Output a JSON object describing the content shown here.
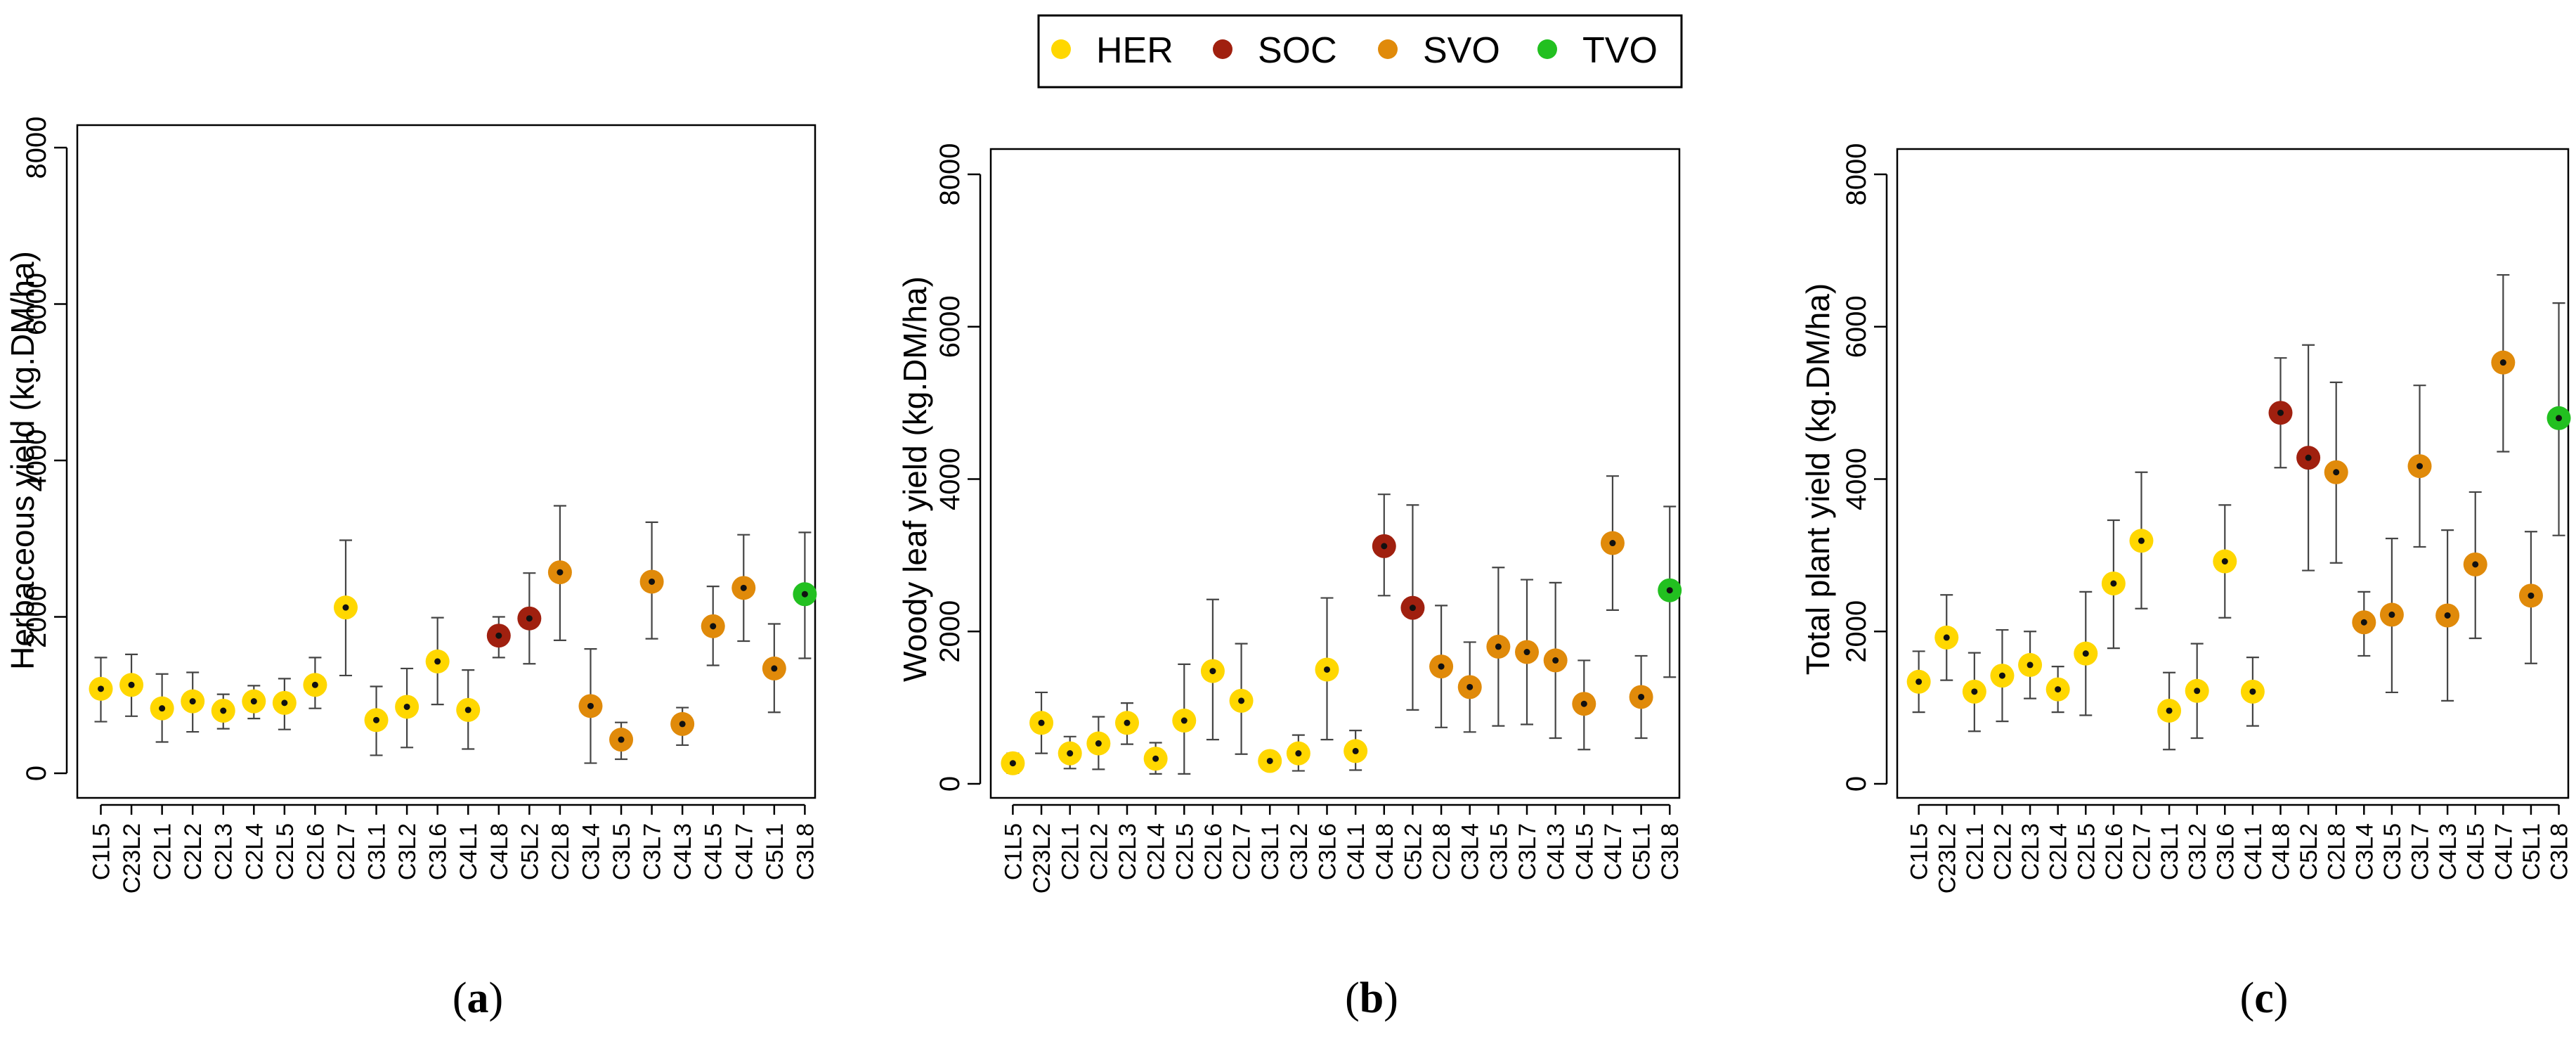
{
  "legend": {
    "entries": [
      {
        "name": "HER",
        "color": "#FFD700"
      },
      {
        "name": "SOC",
        "color": "#A0200F"
      },
      {
        "name": "SVO",
        "color": "#E08A0A"
      },
      {
        "name": "TVO",
        "color": "#22C020"
      }
    ]
  },
  "chart_data": [
    {
      "type": "scatter",
      "panel": "(a)",
      "ylabel": "Herbaceous yield (kg.DM/ha)",
      "ylim": [
        0,
        8000
      ],
      "yticks": [
        "0",
        "2000",
        "4000",
        "6000",
        "8000"
      ],
      "categories": [
        "C1L5",
        "C23L2",
        "C2L1",
        "C2L2",
        "C2L3",
        "C2L4",
        "C2L5",
        "C2L6",
        "C2L7",
        "C3L1",
        "C3L2",
        "C3L6",
        "C4L1",
        "C4L8",
        "C5L2",
        "C2L8",
        "C3L4",
        "C3L5",
        "C3L7",
        "C4L3",
        "C4L5",
        "C4L7",
        "C5L1",
        "C3L8"
      ],
      "groups": [
        "HER",
        "HER",
        "HER",
        "HER",
        "HER",
        "HER",
        "HER",
        "HER",
        "HER",
        "HER",
        "HER",
        "HER",
        "HER",
        "SOC",
        "SOC",
        "SVO",
        "SVO",
        "SVO",
        "SVO",
        "SVO",
        "SVO",
        "SVO",
        "SVO",
        "TVO"
      ],
      "values": [
        1080,
        1130,
        830,
        920,
        800,
        920,
        900,
        1130,
        2120,
        680,
        850,
        1430,
        810,
        1760,
        1980,
        2570,
        860,
        430,
        2450,
        630,
        1880,
        2370,
        1340,
        2290
      ],
      "err_low": [
        660,
        730,
        400,
        530,
        570,
        700,
        560,
        830,
        1250,
        230,
        330,
        880,
        310,
        1480,
        1400,
        1700,
        130,
        180,
        1720,
        360,
        1380,
        1690,
        780,
        1470
      ],
      "err_high": [
        1480,
        1520,
        1270,
        1290,
        1010,
        1120,
        1210,
        1480,
        2980,
        1110,
        1340,
        1990,
        1320,
        2000,
        2560,
        3420,
        1590,
        650,
        3210,
        840,
        2390,
        3050,
        1910,
        3080
      ]
    },
    {
      "type": "scatter",
      "panel": "(b)",
      "ylabel": "Woody leaf yield (kg.DM/ha)",
      "ylim": [
        0,
        8000
      ],
      "yticks": [
        "0",
        "2000",
        "4000",
        "6000",
        "8000"
      ],
      "categories": [
        "C1L5",
        "C23L2",
        "C2L1",
        "C2L2",
        "C2L3",
        "C2L4",
        "C2L5",
        "C2L6",
        "C2L7",
        "C3L1",
        "C3L2",
        "C3L6",
        "C4L1",
        "C4L8",
        "C5L2",
        "C2L8",
        "C3L4",
        "C3L5",
        "C3L7",
        "C4L3",
        "C4L5",
        "C4L7",
        "C5L1",
        "C3L8"
      ],
      "groups": [
        "HER",
        "HER",
        "HER",
        "HER",
        "HER",
        "HER",
        "HER",
        "HER",
        "HER",
        "HER",
        "HER",
        "HER",
        "HER",
        "SOC",
        "SOC",
        "SVO",
        "SVO",
        "SVO",
        "SVO",
        "SVO",
        "SVO",
        "SVO",
        "SVO",
        "TVO"
      ],
      "values": [
        270,
        800,
        400,
        530,
        800,
        330,
        830,
        1480,
        1090,
        300,
        400,
        1500,
        430,
        3120,
        2310,
        1540,
        1270,
        1800,
        1730,
        1620,
        1050,
        3160,
        1140,
        2540
      ],
      "err_low": [
        140,
        400,
        200,
        190,
        520,
        130,
        130,
        580,
        390,
        180,
        170,
        580,
        180,
        2470,
        970,
        740,
        680,
        760,
        780,
        600,
        450,
        2280,
        600,
        1400
      ],
      "err_high": [
        400,
        1200,
        620,
        880,
        1060,
        540,
        1570,
        2420,
        1840,
        410,
        640,
        2440,
        700,
        3800,
        3660,
        2340,
        1860,
        2840,
        2680,
        2640,
        1620,
        4040,
        1680,
        3640
      ]
    },
    {
      "type": "scatter",
      "panel": "(c)",
      "ylabel": "Total plant yield (kg.DM/ha)",
      "ylim": [
        0,
        8000
      ],
      "yticks": [
        "0",
        "2000",
        "4000",
        "6000",
        "8000"
      ],
      "categories": [
        "C1L5",
        "C23L2",
        "C2L1",
        "C2L2",
        "C2L3",
        "C2L4",
        "C2L5",
        "C2L6",
        "C2L7",
        "C3L1",
        "C3L2",
        "C3L6",
        "C4L1",
        "C4L8",
        "C5L2",
        "C2L8",
        "C3L4",
        "C3L5",
        "C3L7",
        "C4L3",
        "C4L5",
        "C4L7",
        "C5L1",
        "C3L8"
      ],
      "groups": [
        "HER",
        "HER",
        "HER",
        "HER",
        "HER",
        "HER",
        "HER",
        "HER",
        "HER",
        "HER",
        "HER",
        "HER",
        "HER",
        "SOC",
        "SOC",
        "SVO",
        "SVO",
        "SVO",
        "SVO",
        "SVO",
        "SVO",
        "SVO",
        "SVO",
        "TVO"
      ],
      "values": [
        1340,
        1920,
        1210,
        1420,
        1560,
        1240,
        1710,
        2630,
        3190,
        960,
        1220,
        2920,
        1210,
        4870,
        4280,
        4090,
        2120,
        2220,
        4170,
        2210,
        2880,
        5530,
        2470,
        4800
      ],
      "err_low": [
        940,
        1360,
        690,
        820,
        1120,
        940,
        900,
        1780,
        2300,
        450,
        600,
        2180,
        760,
        4150,
        2800,
        2900,
        1680,
        1200,
        3110,
        1090,
        1910,
        4360,
        1580,
        3260
      ],
      "err_high": [
        1740,
        2480,
        1720,
        2020,
        2000,
        1540,
        2520,
        3460,
        4090,
        1460,
        1840,
        3660,
        1660,
        5590,
        5760,
        5270,
        2520,
        3220,
        5230,
        3330,
        3830,
        6680,
        3310,
        6310
      ]
    }
  ]
}
